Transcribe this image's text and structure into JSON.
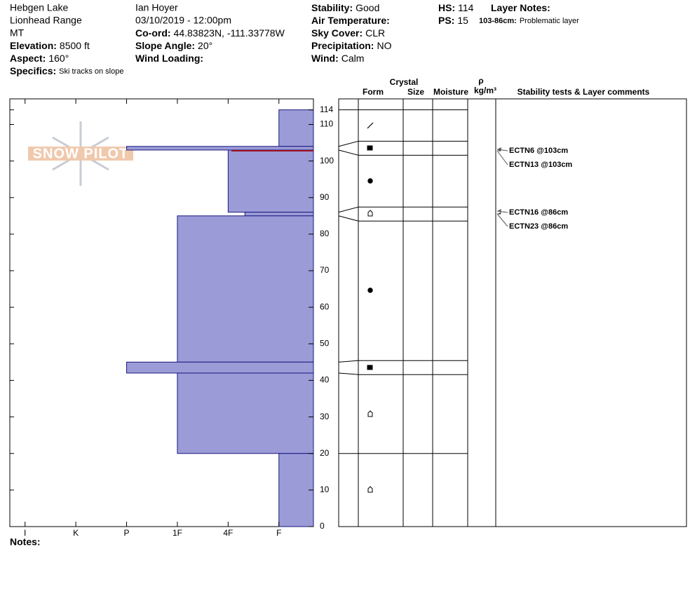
{
  "header": {
    "site": [
      "Hebgen Lake",
      "Lionhead Range",
      "MT"
    ],
    "observer": "Ian Hoyer",
    "datetime": "03/10/2019 - 12:00pm",
    "fields": [
      {
        "label": "Elevation:",
        "value": "8500 ft"
      },
      {
        "label": "Aspect:",
        "value": "160°"
      },
      {
        "label": "Specifics:",
        "value": "Ski tracks on slope"
      },
      {
        "label": "Co-ord:",
        "value": "44.83823N, -111.33778W"
      },
      {
        "label": "Slope Angle:",
        "value": "20°"
      },
      {
        "label": "Wind Loading:"
      },
      {
        "label": "Stability:",
        "value": "Good"
      },
      {
        "label": "Air Temperature:"
      },
      {
        "label": "Sky Cover:",
        "value": "CLR"
      },
      {
        "label": "Precipitation:",
        "value": "NO"
      },
      {
        "label": "Wind:",
        "value": "Calm"
      },
      {
        "label": "HS:",
        "value": 114
      },
      {
        "label": "PS:",
        "value": 15
      },
      {
        "label": "Layer Notes:"
      },
      {
        "label": "103-86cm:",
        "value": "Problematic layer"
      }
    ]
  },
  "logo": "SNOW PILOT",
  "chart_data": {
    "type": "hardness-profile",
    "color": "#9b9bd7",
    "xlim": [
      6.3,
      0.32
    ],
    "xticks": [
      {
        "value": 6,
        "label": "I"
      },
      {
        "value": 5,
        "label": "K"
      },
      {
        "value": 4,
        "label": "P"
      },
      {
        "value": 3,
        "label": "1F"
      },
      {
        "value": 2,
        "label": "4F"
      },
      {
        "value": 1,
        "label": "F"
      }
    ],
    "ylim": [
      0,
      117
    ],
    "yticks": [
      0,
      10,
      20,
      30,
      40,
      50,
      60,
      70,
      80,
      90,
      100,
      110,
      114
    ],
    "layers": [
      {
        "top": 114,
        "bottom": 104,
        "hardness": 1
      },
      {
        "top": 104,
        "bottom": 103,
        "hardness": 4
      },
      {
        "top": 103,
        "bottom": 86,
        "hardness": 2
      },
      {
        "top": 86,
        "bottom": 85,
        "hardness": 1.67
      },
      {
        "top": 85,
        "bottom": 45,
        "hardness": 3
      },
      {
        "top": 45,
        "bottom": 42,
        "hardness": 4
      },
      {
        "top": 42,
        "bottom": 20,
        "hardness": 3
      },
      {
        "top": 20,
        "bottom": 0,
        "hardness": 1
      }
    ],
    "table_headers": [
      "Crystal",
      "Form",
      "Size",
      "Moisture",
      "ρ",
      "kg/m³",
      "Stability tests & Layer comments"
    ],
    "stability_tests": [
      "ECTN6 @103cm",
      "ECTN13 @103cm",
      "ECTN16 @86cm",
      "ECTN23 @86cm"
    ],
    "notes_label": "Notes:"
  }
}
